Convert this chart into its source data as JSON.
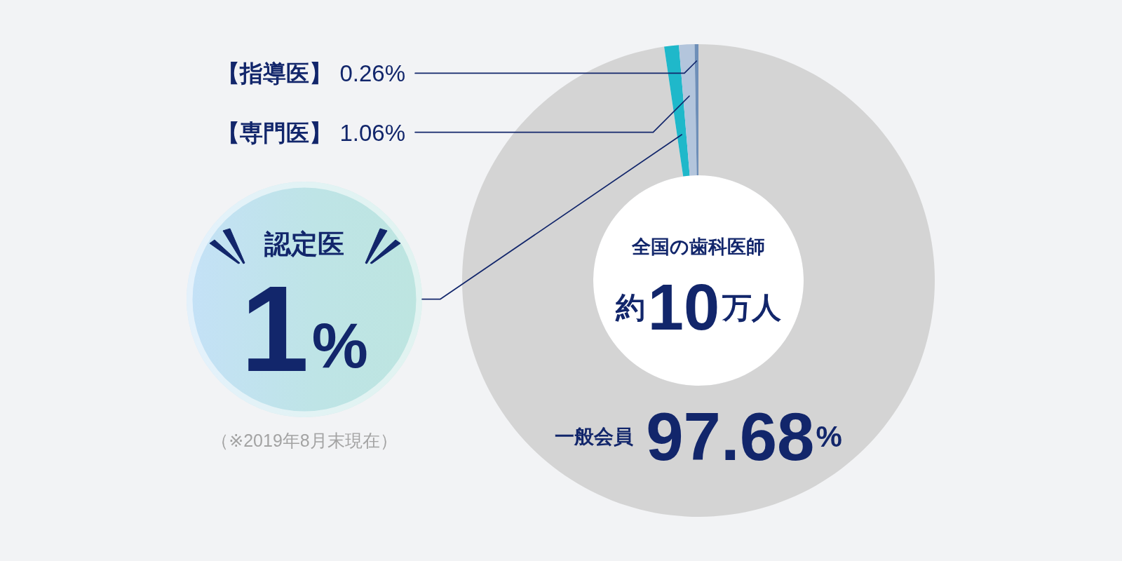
{
  "chart_data": {
    "type": "donut",
    "categories": [
      "一般会員",
      "認定医",
      "【専門医】",
      "【指導医】"
    ],
    "values": [
      97.68,
      1,
      1.06,
      0.26
    ],
    "colors": [
      "#d4d4d4",
      "#1fb8ca",
      "#b3c5dc",
      "#6e8fb8"
    ],
    "value_labels": [
      "97.68%",
      "1%",
      "1.06%",
      "0.26%"
    ],
    "annotations": [
      "全国の歯科医師",
      "約10万人",
      "（※2019年8月末現在）"
    ]
  }
}
